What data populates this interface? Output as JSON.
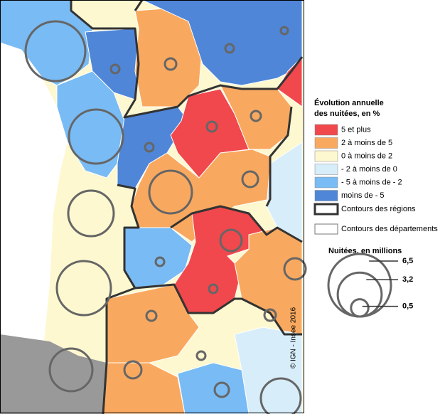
{
  "legend": {
    "title": [
      "Évolution annuelle",
      "des nuitées, en %"
    ],
    "classes": [
      {
        "label": "5 et plus",
        "color": "#f0484d"
      },
      {
        "label": "2 à moins de 5",
        "color": "#f9a95f"
      },
      {
        "label": "0 à moins de 2",
        "color": "#fdf8d0"
      },
      {
        "label": "- 2 à moins de 0",
        "color": "#d7edf9"
      },
      {
        "label": "- 5 à moins de - 2",
        "color": "#79bbf4"
      },
      {
        "label": "moins de - 5",
        "color": "#4f86d8"
      }
    ],
    "region_border": "Contours des régions",
    "department_border": "Contours des départements"
  },
  "bubble_legend": {
    "title": "Nuitées, en millions",
    "sizes": [
      {
        "value": 6.5,
        "label": "6,5"
      },
      {
        "value": 3.2,
        "label": "3,2"
      },
      {
        "value": 0.5,
        "label": "0,5"
      }
    ]
  },
  "source": "© IGN - Insee 2016"
}
